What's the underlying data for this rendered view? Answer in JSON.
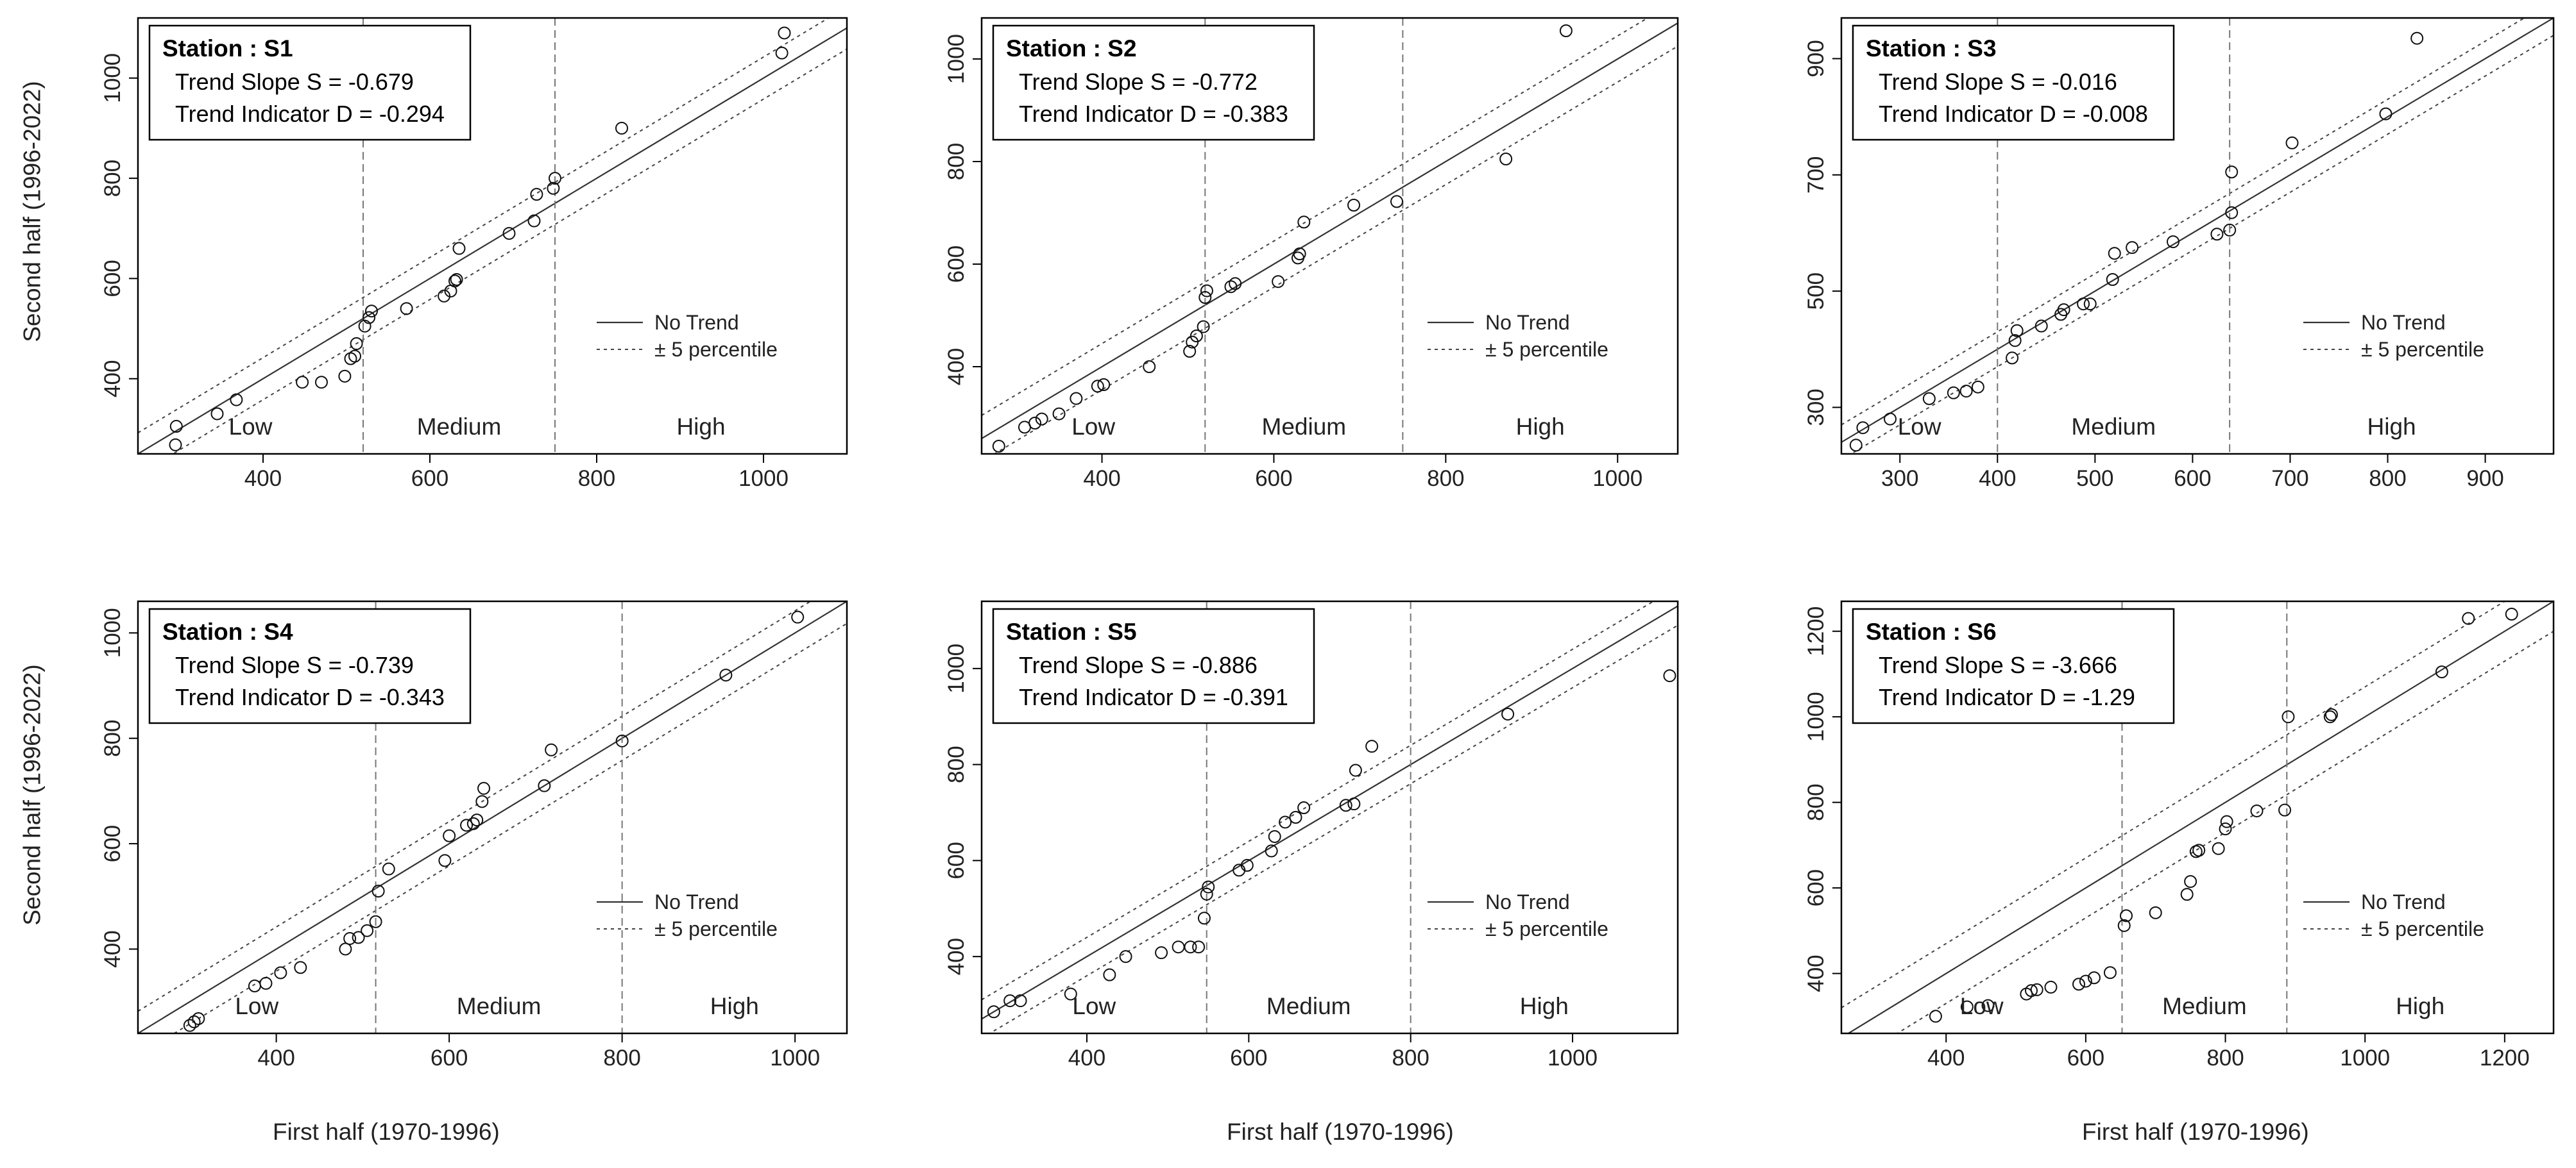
{
  "figure": {
    "ylabel": "Second half (1996-2022)",
    "xlabel": "First half (1970-1996)"
  },
  "legend_labels": {
    "no_trend": "No Trend",
    "percentile": "± 5 percentile"
  },
  "zone_labels": [
    "Low",
    "Medium",
    "High"
  ],
  "chart_data": [
    {
      "type": "scatter",
      "station_label": "Station : S1",
      "slope_label": "Trend Slope S = -0.679",
      "indicator_label": "Trend Indicator D = -0.294",
      "xlim": [
        250,
        1100
      ],
      "ylim": [
        250,
        1120
      ],
      "xticks": [
        400,
        600,
        800,
        1000
      ],
      "yticks": [
        400,
        600,
        800,
        1000
      ],
      "zone_boundaries": [
        520,
        750
      ],
      "band": 42,
      "legend_position": "right",
      "points": [
        [
          295,
          268
        ],
        [
          296,
          305
        ],
        [
          345,
          330
        ],
        [
          368,
          358
        ],
        [
          447,
          393
        ],
        [
          470,
          393
        ],
        [
          498,
          405
        ],
        [
          505,
          440
        ],
        [
          510,
          445
        ],
        [
          512,
          470
        ],
        [
          522,
          505
        ],
        [
          527,
          522
        ],
        [
          530,
          535
        ],
        [
          572,
          540
        ],
        [
          617,
          565
        ],
        [
          625,
          575
        ],
        [
          630,
          595
        ],
        [
          632,
          598
        ],
        [
          635,
          660
        ],
        [
          695,
          690
        ],
        [
          725,
          715
        ],
        [
          728,
          768
        ],
        [
          748,
          780
        ],
        [
          750,
          800
        ],
        [
          830,
          900
        ],
        [
          1022,
          1050
        ],
        [
          1025,
          1090
        ]
      ]
    },
    {
      "type": "scatter",
      "station_label": "Station : S2",
      "slope_label": "Trend Slope S = -0.772",
      "indicator_label": "Trend Indicator D = -0.383",
      "xlim": [
        260,
        1070
      ],
      "ylim": [
        230,
        1080
      ],
      "xticks": [
        400,
        600,
        800,
        1000
      ],
      "yticks": [
        400,
        600,
        800,
        1000
      ],
      "zone_boundaries": [
        520,
        750
      ],
      "band": 45,
      "legend_position": "right",
      "points": [
        [
          280,
          245
        ],
        [
          310,
          282
        ],
        [
          322,
          290
        ],
        [
          330,
          298
        ],
        [
          350,
          308
        ],
        [
          370,
          338
        ],
        [
          395,
          362
        ],
        [
          402,
          365
        ],
        [
          455,
          400
        ],
        [
          502,
          430
        ],
        [
          505,
          448
        ],
        [
          510,
          460
        ],
        [
          518,
          478
        ],
        [
          520,
          535
        ],
        [
          522,
          548
        ],
        [
          550,
          556
        ],
        [
          555,
          562
        ],
        [
          605,
          566
        ],
        [
          628,
          612
        ],
        [
          630,
          620
        ],
        [
          635,
          682
        ],
        [
          693,
          715
        ],
        [
          743,
          722
        ],
        [
          870,
          805
        ],
        [
          940,
          1055
        ]
      ]
    },
    {
      "type": "scatter",
      "station_label": "Station : S3",
      "slope_label": "Trend Slope S = -0.016",
      "indicator_label": "Trend Indicator D = -0.008",
      "xlim": [
        240,
        970
      ],
      "ylim": [
        220,
        970
      ],
      "xticks": [
        300,
        400,
        500,
        600,
        700,
        800,
        900
      ],
      "yticks": [
        300,
        500,
        700,
        900
      ],
      "zone_boundaries": [
        400,
        638
      ],
      "band": 30,
      "legend_position": "right",
      "points": [
        [
          255,
          235
        ],
        [
          262,
          265
        ],
        [
          290,
          280
        ],
        [
          330,
          315
        ],
        [
          355,
          325
        ],
        [
          368,
          328
        ],
        [
          380,
          335
        ],
        [
          415,
          385
        ],
        [
          418,
          415
        ],
        [
          420,
          432
        ],
        [
          445,
          440
        ],
        [
          465,
          460
        ],
        [
          468,
          468
        ],
        [
          488,
          478
        ],
        [
          495,
          478
        ],
        [
          518,
          520
        ],
        [
          520,
          565
        ],
        [
          538,
          575
        ],
        [
          580,
          585
        ],
        [
          625,
          598
        ],
        [
          638,
          605
        ],
        [
          640,
          635
        ],
        [
          640,
          705
        ],
        [
          702,
          755
        ],
        [
          798,
          805
        ],
        [
          830,
          935
        ]
      ]
    },
    {
      "type": "scatter",
      "station_label": "Station : S4",
      "slope_label": "Trend Slope S = -0.739",
      "indicator_label": "Trend Indicator D = -0.343",
      "xlim": [
        240,
        1060
      ],
      "ylim": [
        240,
        1060
      ],
      "xticks": [
        400,
        600,
        800,
        1000
      ],
      "yticks": [
        400,
        600,
        800,
        1000
      ],
      "zone_boundaries": [
        515,
        800
      ],
      "band": 42,
      "legend_position": "right",
      "points": [
        [
          300,
          255
        ],
        [
          305,
          262
        ],
        [
          310,
          268
        ],
        [
          375,
          330
        ],
        [
          388,
          335
        ],
        [
          405,
          355
        ],
        [
          428,
          365
        ],
        [
          480,
          400
        ],
        [
          485,
          420
        ],
        [
          495,
          422
        ],
        [
          505,
          435
        ],
        [
          515,
          452
        ],
        [
          518,
          510
        ],
        [
          530,
          552
        ],
        [
          595,
          568
        ],
        [
          600,
          615
        ],
        [
          620,
          635
        ],
        [
          628,
          638
        ],
        [
          632,
          645
        ],
        [
          638,
          680
        ],
        [
          640,
          705
        ],
        [
          710,
          710
        ],
        [
          718,
          778
        ],
        [
          800,
          795
        ],
        [
          920,
          920
        ],
        [
          1003,
          1030
        ]
      ]
    },
    {
      "type": "scatter",
      "station_label": "Station : S5",
      "slope_label": "Trend Slope S = -0.886",
      "indicator_label": "Trend Indicator D = -0.391",
      "xlim": [
        270,
        1130
      ],
      "ylim": [
        240,
        1140
      ],
      "xticks": [
        400,
        600,
        800,
        1000
      ],
      "yticks": [
        400,
        600,
        800,
        1000
      ],
      "zone_boundaries": [
        548,
        800
      ],
      "band": 40,
      "legend_position": "right",
      "points": [
        [
          285,
          285
        ],
        [
          305,
          308
        ],
        [
          318,
          308
        ],
        [
          380,
          322
        ],
        [
          428,
          362
        ],
        [
          448,
          400
        ],
        [
          492,
          408
        ],
        [
          513,
          420
        ],
        [
          528,
          420
        ],
        [
          538,
          420
        ],
        [
          545,
          480
        ],
        [
          548,
          530
        ],
        [
          550,
          545
        ],
        [
          588,
          580
        ],
        [
          598,
          590
        ],
        [
          628,
          620
        ],
        [
          632,
          650
        ],
        [
          645,
          680
        ],
        [
          658,
          690
        ],
        [
          668,
          710
        ],
        [
          720,
          715
        ],
        [
          730,
          718
        ],
        [
          732,
          788
        ],
        [
          752,
          838
        ],
        [
          920,
          905
        ],
        [
          1120,
          985
        ]
      ]
    },
    {
      "type": "scatter",
      "station_label": "Station : S6",
      "slope_label": "Trend Slope S = -3.666",
      "indicator_label": "Trend Indicator D = -1.29",
      "xlim": [
        250,
        1270
      ],
      "ylim": [
        260,
        1270
      ],
      "xticks": [
        400,
        600,
        800,
        1000,
        1200
      ],
      "yticks": [
        400,
        600,
        800,
        1000,
        1200
      ],
      "zone_boundaries": [
        652,
        888
      ],
      "band": 70,
      "legend_position": "right",
      "points": [
        [
          385,
          300
        ],
        [
          430,
          322
        ],
        [
          460,
          325
        ],
        [
          515,
          352
        ],
        [
          522,
          360
        ],
        [
          530,
          362
        ],
        [
          550,
          368
        ],
        [
          590,
          375
        ],
        [
          600,
          382
        ],
        [
          612,
          390
        ],
        [
          635,
          402
        ],
        [
          655,
          512
        ],
        [
          658,
          535
        ],
        [
          700,
          542
        ],
        [
          745,
          585
        ],
        [
          750,
          615
        ],
        [
          758,
          685
        ],
        [
          762,
          688
        ],
        [
          790,
          692
        ],
        [
          800,
          738
        ],
        [
          802,
          755
        ],
        [
          845,
          780
        ],
        [
          885,
          782
        ],
        [
          890,
          1000
        ],
        [
          950,
          1000
        ],
        [
          952,
          1005
        ],
        [
          1110,
          1105
        ],
        [
          1148,
          1230
        ],
        [
          1210,
          1240
        ]
      ]
    }
  ]
}
